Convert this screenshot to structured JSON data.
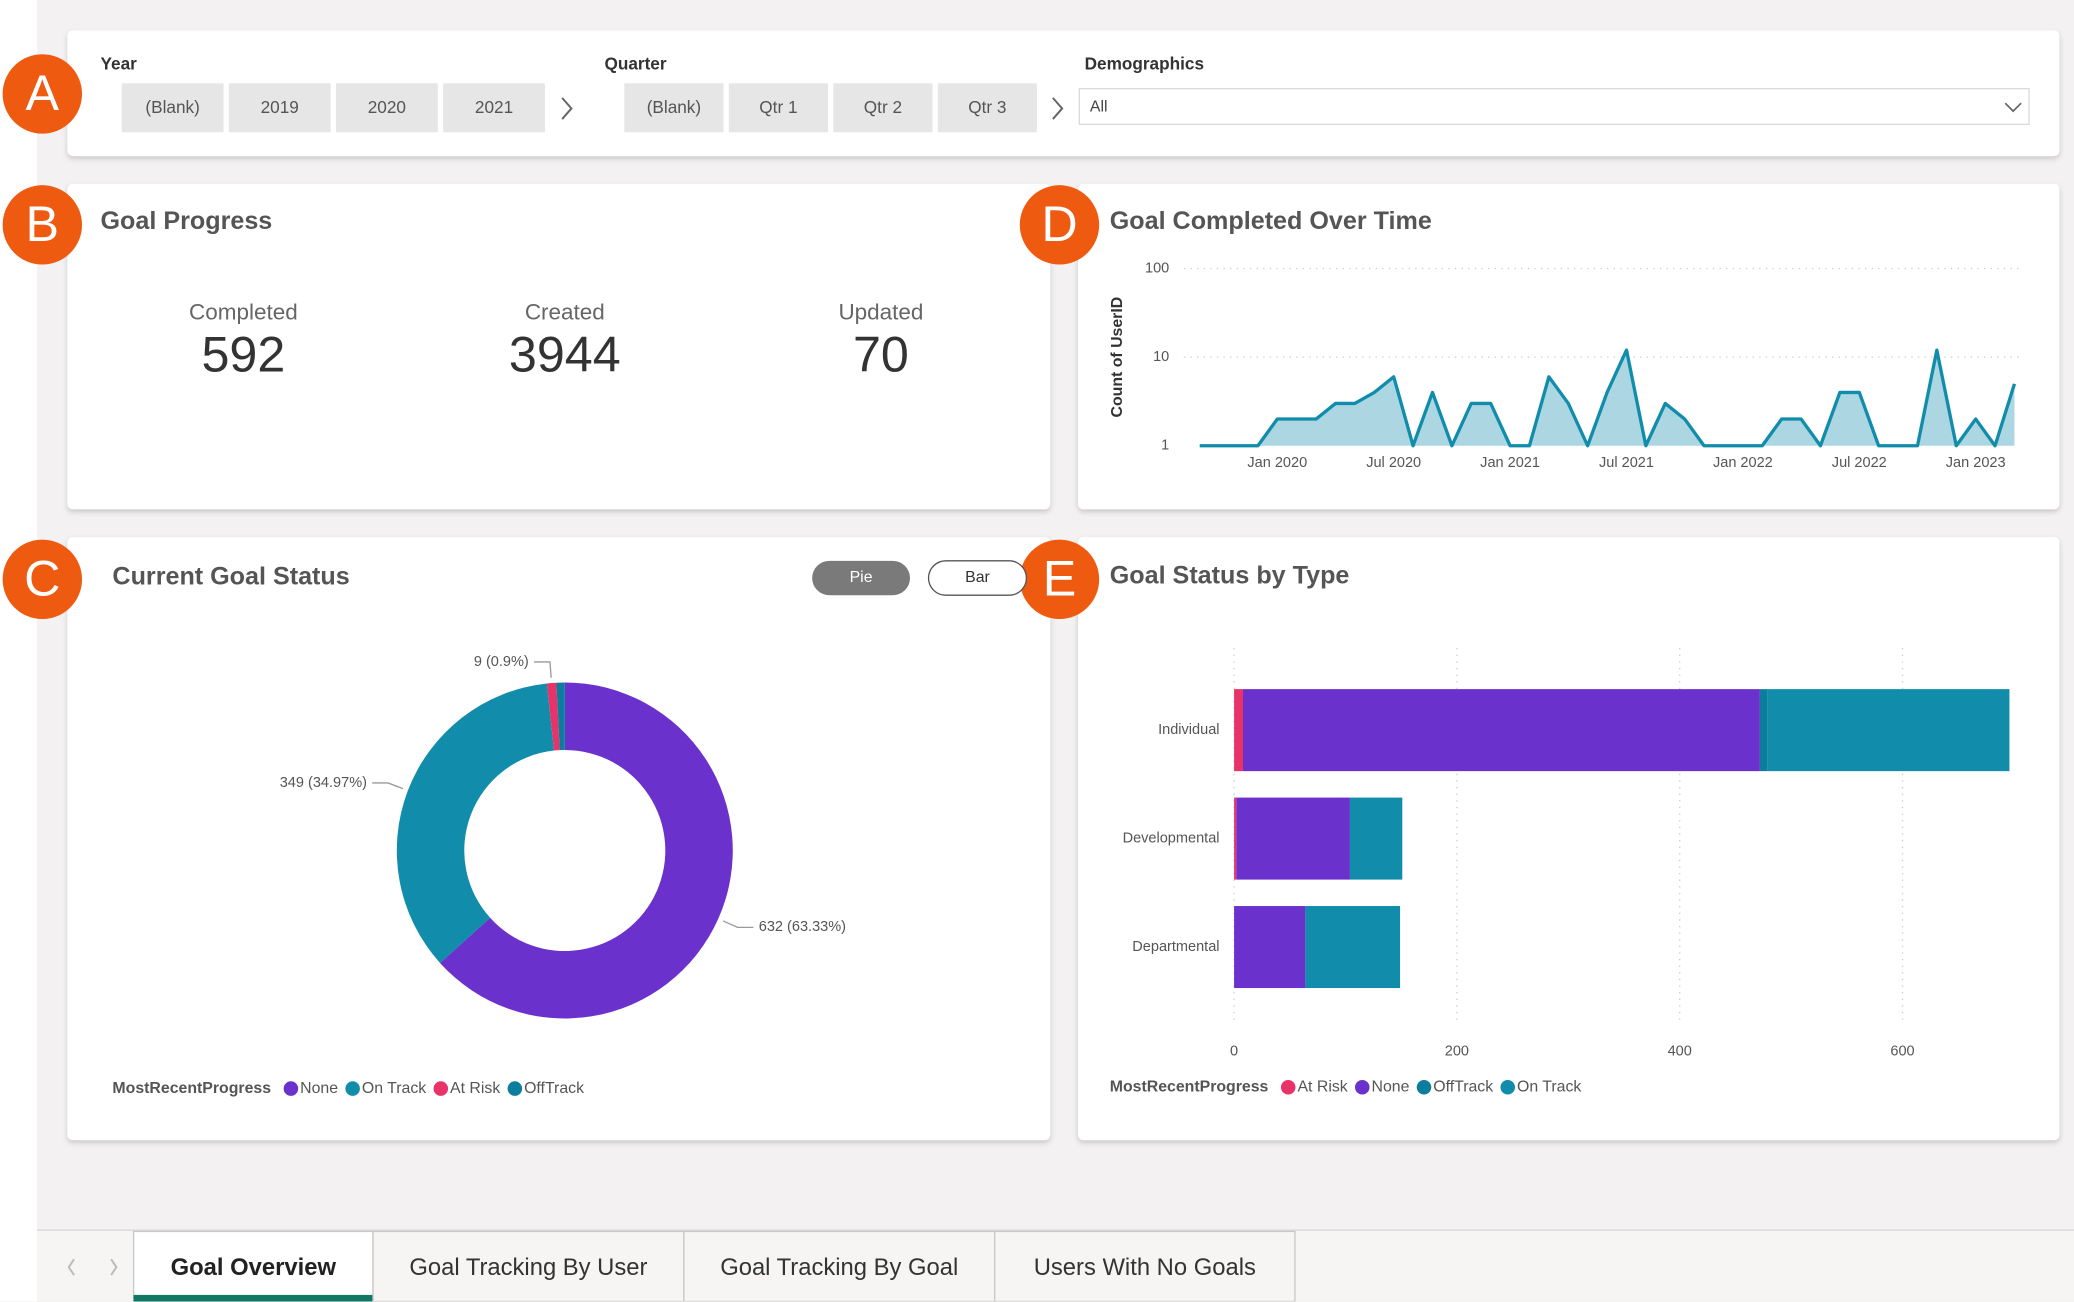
{
  "badges": [
    "A",
    "B",
    "C",
    "D",
    "E"
  ],
  "filters": {
    "year": {
      "label": "Year",
      "options": [
        "(Blank)",
        "2019",
        "2020",
        "2021"
      ]
    },
    "quarter": {
      "label": "Quarter",
      "options": [
        "(Blank)",
        "Qtr 1",
        "Qtr 2",
        "Qtr 3"
      ]
    },
    "demographics": {
      "label": "Demographics",
      "value": "All"
    }
  },
  "goal_progress": {
    "title": "Goal Progress",
    "stats": [
      {
        "label": "Completed",
        "value": 592
      },
      {
        "label": "Created",
        "value": 3944
      },
      {
        "label": "Updated",
        "value": 70
      }
    ]
  },
  "view_toggle": [
    "Pie",
    "Bar"
  ],
  "chart_data": [
    {
      "type": "line",
      "title": "Goal Completed Over Time",
      "y_label": "Count of UserID",
      "log": true,
      "area": true,
      "color": "#118dab",
      "x": [
        "Sep 2019",
        "Oct 2019",
        "Nov 2019",
        "Dec 2019",
        "Jan 2020",
        "Feb 2020",
        "Mar 2020",
        "Apr 2020",
        "May 2020",
        "Jun 2020",
        "Jul 2020",
        "Aug 2020",
        "Sep 2020",
        "Oct 2020",
        "Nov 2020",
        "Dec 2020",
        "Jan 2021",
        "Feb 2021",
        "Mar 2021",
        "Apr 2021",
        "May 2021",
        "Jun 2021",
        "Jul 2021",
        "Aug 2021",
        "Sep 2021",
        "Oct 2021",
        "Nov 2021",
        "Dec 2021",
        "Jan 2022",
        "Feb 2022",
        "Mar 2022",
        "Apr 2022",
        "May 2022",
        "Jun 2022",
        "Jul 2022",
        "Aug 2022",
        "Sep 2022",
        "Oct 2022",
        "Nov 2022",
        "Dec 2022",
        "Jan 2023",
        "Feb 2023",
        "Mar 2023"
      ],
      "values": [
        1,
        1,
        1,
        1,
        2,
        2,
        2,
        3,
        3,
        4,
        6,
        1,
        4,
        1,
        3,
        3,
        1,
        1,
        6,
        3,
        1,
        4,
        12,
        1,
        3,
        2,
        1,
        1,
        1,
        1,
        2,
        2,
        1,
        4,
        4,
        1,
        1,
        1,
        12,
        1,
        2,
        1,
        5
      ],
      "xlim": [
        "Sep 2019",
        "Mar 2023"
      ],
      "xticks": [
        "Jan 2020",
        "Jul 2020",
        "Jan 2021",
        "Jul 2021",
        "Jan 2022",
        "Jul 2022",
        "Jan 2023"
      ],
      "ylim": [
        1,
        100
      ],
      "yticks": [
        1,
        10,
        100
      ],
      "grid": true
    },
    {
      "type": "pie",
      "title": "Current Goal Status",
      "legend_title": "MostRecentProgress",
      "donut": true,
      "categories": [
        "None",
        "On Track",
        "At Risk",
        "OffTrack"
      ],
      "values": [
        632,
        349,
        9,
        8
      ],
      "value_labels": [
        "632 (63.33%)",
        "349 (34.97%)",
        "9 (0.9%)",
        null
      ],
      "colors": [
        "#6b31cc",
        "#118dab",
        "#e8336a",
        "#0c7d9c"
      ]
    },
    {
      "type": "hbar",
      "title": "Goal Status by Type",
      "legend_title": "MostRecentProgress",
      "stacked": true,
      "categories": [
        "Individual",
        "Developmental",
        "Departmental"
      ],
      "series": [
        {
          "name": "At Risk",
          "color": "#e8336a",
          "values": [
            8,
            2,
            0
          ]
        },
        {
          "name": "None",
          "color": "#6b31cc",
          "values": [
            464,
            102,
            64
          ]
        },
        {
          "name": "OffTrack",
          "color": "#0c7d9c",
          "values": [
            7,
            0,
            0
          ]
        },
        {
          "name": "On Track",
          "color": "#118dab",
          "values": [
            217,
            47,
            85
          ]
        }
      ],
      "xlim": [
        0,
        710
      ],
      "xticks": [
        0,
        200,
        400,
        600
      ],
      "grid": true
    }
  ],
  "tabs": [
    "Goal Overview",
    "Goal Tracking By User",
    "Goal Tracking By Goal",
    "Users With No Goals"
  ],
  "active_tab": 0
}
